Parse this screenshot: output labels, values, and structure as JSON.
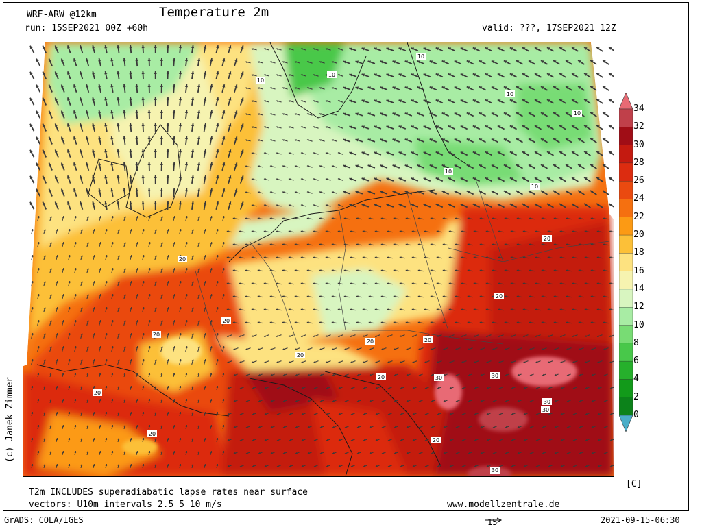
{
  "header": {
    "model": "WRF-ARW @12km",
    "title": "Temperature 2m",
    "run": "run: 15SEP2021 00Z +60h",
    "valid": "valid: ???, 17SEP2021 12Z"
  },
  "copyright": "(c) Janek Zimmer",
  "notes": {
    "line1": "T2m INCLUDES superadiabatic lapse rates near surface",
    "line2": "vectors: U10m intervals 2.5 5 10 m/s",
    "website": "www.modellzentrale.de"
  },
  "footer": {
    "software": "GrADS: COLA/IGES",
    "vector_scale": "15",
    "timestamp": "2021-09-15-06:30"
  },
  "legend": {
    "unit": "[C]",
    "labels": [
      "34",
      "32",
      "30",
      "28",
      "26",
      "24",
      "22",
      "20",
      "18",
      "16",
      "14",
      "12",
      "10",
      "8",
      "6",
      "4",
      "2",
      "0"
    ],
    "colors": [
      "#e86a74",
      "#c0404a",
      "#a00d16",
      "#c41a10",
      "#dc2c10",
      "#ea4a10",
      "#f57010",
      "#fc9a14",
      "#fcc038",
      "#fde280",
      "#f6f3b0",
      "#d8f5c0",
      "#a8eca4",
      "#78dc74",
      "#48c84a",
      "#26b02c",
      "#129a1a",
      "#0c821a",
      "#4aaec8"
    ]
  },
  "map_labels": [
    {
      "text": "10"
    },
    {
      "text": "10"
    },
    {
      "text": "10"
    },
    {
      "text": "10"
    },
    {
      "text": "10"
    },
    {
      "text": "10"
    },
    {
      "text": "10"
    },
    {
      "text": "20"
    },
    {
      "text": "20"
    },
    {
      "text": "20"
    },
    {
      "text": "20"
    },
    {
      "text": "20"
    },
    {
      "text": "20"
    },
    {
      "text": "20"
    },
    {
      "text": "20"
    },
    {
      "text": "20"
    },
    {
      "text": "20"
    },
    {
      "text": "20"
    },
    {
      "text": "20"
    },
    {
      "text": "30"
    },
    {
      "text": "30"
    },
    {
      "text": "30"
    },
    {
      "text": "30"
    },
    {
      "text": "30"
    }
  ]
}
